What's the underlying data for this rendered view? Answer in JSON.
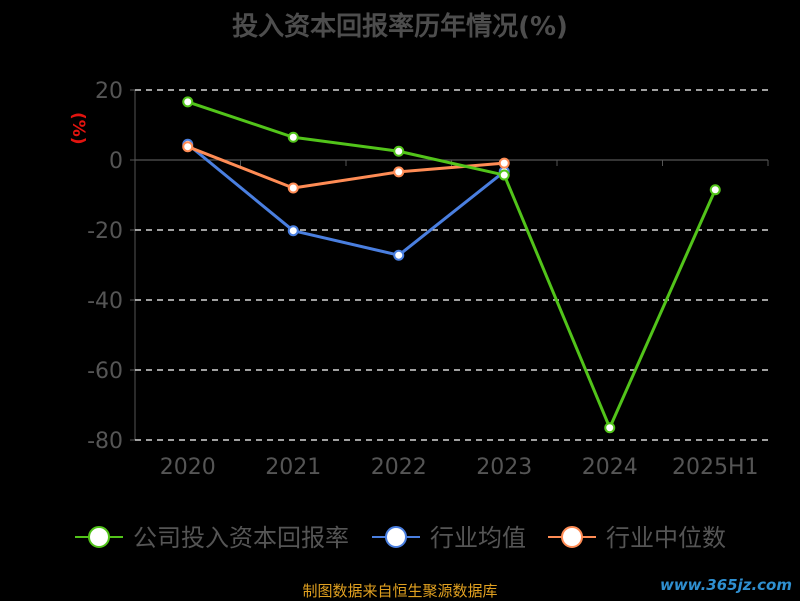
{
  "chart_data": {
    "type": "line",
    "title": "投入资本回报率历年情况(%)",
    "unit_label": "(%)",
    "categories": [
      "2020",
      "2021",
      "2022",
      "2023",
      "2024",
      "2025H1"
    ],
    "ylim": [
      -80,
      20
    ],
    "yticks": [
      20,
      0,
      -20,
      -40,
      -60,
      -80
    ],
    "grid": true,
    "legend_position": "bottom",
    "series": [
      {
        "name": "公司投入资本回报率",
        "color": "#52c41a",
        "values": [
          16.6,
          6.5,
          2.5,
          -4.3,
          -76.5,
          -8.5
        ]
      },
      {
        "name": "行业均值",
        "color": "#4a7fe0",
        "values": [
          4.5,
          -20.2,
          -27.2,
          -3.3,
          null,
          null
        ]
      },
      {
        "name": "行业中位数",
        "color": "#ff8c55",
        "values": [
          3.8,
          -8.0,
          -3.4,
          -0.9,
          null,
          null
        ]
      }
    ]
  },
  "footer_text": "制图数据来自恒生聚源数据库",
  "watermark_text": "www.365jz.com"
}
